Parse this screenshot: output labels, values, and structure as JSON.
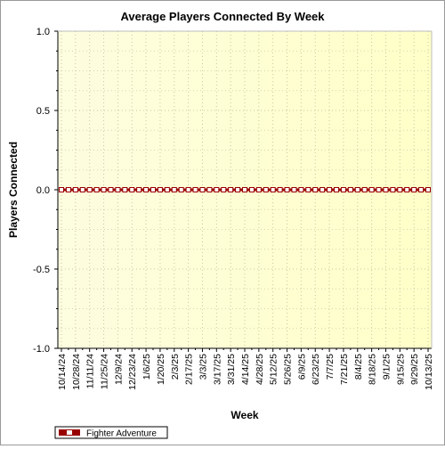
{
  "chart_data": {
    "type": "line",
    "title": "Average Players Connected By Week",
    "xlabel": "Week",
    "ylabel": "Players Connected",
    "ylim": [
      -1.0,
      1.0
    ],
    "yticks": [
      "1.0",
      "0.5",
      "0.0",
      "-0.5",
      "-1.0"
    ],
    "grid": true,
    "legend": "bottom-left",
    "x": [
      "10/14/24",
      "10/21/24",
      "10/28/24",
      "11/4/24",
      "11/11/24",
      "11/18/24",
      "11/25/24",
      "12/2/24",
      "12/9/24",
      "12/16/24",
      "12/23/24",
      "12/30/24",
      "1/6/25",
      "1/13/25",
      "1/20/25",
      "1/27/25",
      "2/3/25",
      "2/10/25",
      "2/17/25",
      "2/24/25",
      "3/3/25",
      "3/10/25",
      "3/17/25",
      "3/24/25",
      "3/31/25",
      "4/7/25",
      "4/14/25",
      "4/21/25",
      "4/28/25",
      "5/5/25",
      "5/12/25",
      "5/19/25",
      "5/26/25",
      "6/2/25",
      "6/9/25",
      "6/16/25",
      "6/23/25",
      "6/30/25",
      "7/7/25",
      "7/14/25",
      "7/21/25",
      "7/28/25",
      "8/4/25",
      "8/11/25",
      "8/18/25",
      "8/25/25",
      "9/1/25",
      "9/8/25",
      "9/15/25",
      "9/22/25",
      "9/29/25",
      "10/6/25",
      "10/13/25"
    ],
    "x_labels_shown": [
      "10/14/24",
      "10/28/24",
      "11/11/24",
      "11/25/24",
      "12/9/24",
      "12/23/24",
      "1/6/25",
      "1/20/25",
      "2/3/25",
      "2/17/25",
      "3/3/25",
      "3/17/25",
      "3/31/25",
      "4/14/25",
      "4/28/25",
      "5/12/25",
      "5/26/25",
      "6/9/25",
      "6/23/25",
      "7/7/25",
      "7/21/25",
      "8/4/25",
      "8/18/25",
      "9/1/25",
      "9/15/25",
      "9/29/25",
      "10/13/25"
    ],
    "series": [
      {
        "name": "Fighter Adventure",
        "color": "#990000",
        "values": [
          0,
          0,
          0,
          0,
          0,
          0,
          0,
          0,
          0,
          0,
          0,
          0,
          0,
          0,
          0,
          0,
          0,
          0,
          0,
          0,
          0,
          0,
          0,
          0,
          0,
          0,
          0,
          0,
          0,
          0,
          0,
          0,
          0,
          0,
          0,
          0,
          0,
          0,
          0,
          0,
          0,
          0,
          0,
          0,
          0,
          0,
          0,
          0,
          0,
          0,
          0,
          0,
          0
        ]
      }
    ]
  }
}
